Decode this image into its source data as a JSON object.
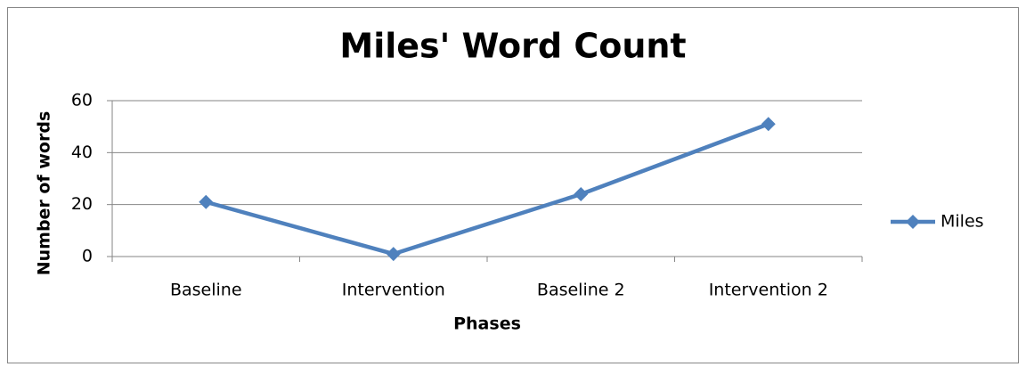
{
  "chart_data": {
    "type": "line",
    "title": "Miles' Word Count",
    "x_label": "Phases",
    "y_label": "Number of words",
    "categories": [
      "Baseline",
      "Intervention",
      "Baseline 2",
      "Intervention 2"
    ],
    "series": [
      {
        "name": "Miles",
        "color": "#4f81bd",
        "values": [
          21,
          1,
          24,
          51
        ]
      }
    ],
    "ylim": [
      0,
      60
    ],
    "yticks": [
      0,
      20,
      40,
      60
    ],
    "grid": true,
    "legend": "right"
  }
}
